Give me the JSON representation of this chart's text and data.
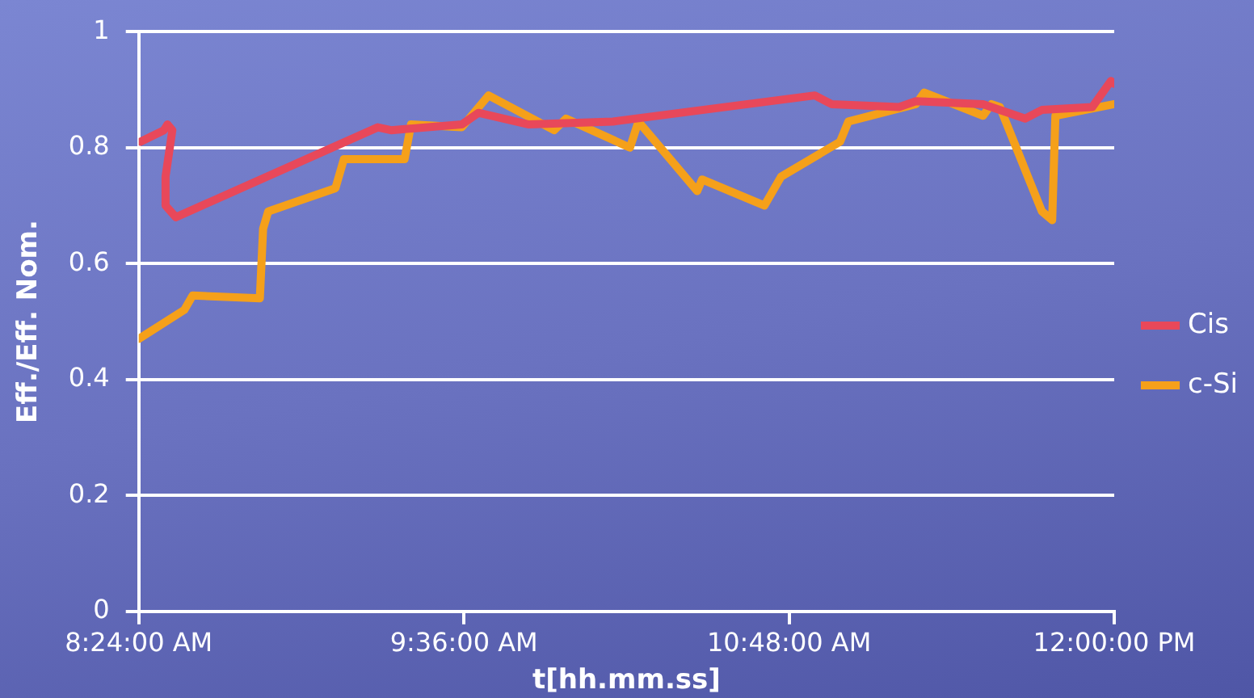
{
  "chart_data": {
    "type": "line",
    "xlabel": "t[hh.mm.ss]",
    "ylabel": "Eff./Eff. Nom.",
    "xlim": [
      8.4,
      12
    ],
    "xticks": [
      {
        "value": 8.4,
        "label": "8:24:00 AM"
      },
      {
        "value": 9.6,
        "label": "9:36:00 AM"
      },
      {
        "value": 10.8,
        "label": "10:48:00 AM"
      },
      {
        "value": 12,
        "label": "12:00:00 PM"
      }
    ],
    "ylim": [
      0,
      1
    ],
    "yticks": [
      0,
      0.2,
      0.4,
      0.6,
      0.8,
      1
    ],
    "grid": "y",
    "legend": "right",
    "marker": "none",
    "line_style": "solid",
    "series": [
      {
        "name": "Cis",
        "color": "#e8485a",
        "x": [
          8.406,
          8.493,
          8.506,
          8.524,
          8.499,
          8.499,
          8.537,
          9.282,
          9.331,
          9.592,
          9.654,
          9.84,
          10.15,
          10.895,
          10.957,
          11.206,
          11.268,
          11.516,
          11.671,
          11.733,
          11.919,
          11.988,
          12.0
        ],
        "values": [
          0.81,
          0.83,
          0.84,
          0.83,
          0.75,
          0.7,
          0.68,
          0.835,
          0.83,
          0.84,
          0.86,
          0.84,
          0.845,
          0.89,
          0.875,
          0.87,
          0.88,
          0.875,
          0.85,
          0.865,
          0.87,
          0.915,
          0.91
        ]
      },
      {
        "name": "c-Si",
        "color": "#f5a01a",
        "x": [
          8.4,
          8.568,
          8.599,
          8.847,
          8.859,
          8.878,
          9.126,
          9.157,
          9.381,
          9.405,
          9.592,
          9.691,
          9.933,
          9.977,
          10.213,
          10.244,
          10.461,
          10.479,
          10.709,
          10.771,
          10.988,
          11.019,
          11.268,
          11.299,
          11.516,
          11.547,
          11.578,
          11.733,
          11.771,
          11.783,
          12.0
        ],
        "values": [
          0.47,
          0.52,
          0.545,
          0.54,
          0.66,
          0.69,
          0.73,
          0.78,
          0.78,
          0.84,
          0.835,
          0.89,
          0.83,
          0.85,
          0.8,
          0.845,
          0.725,
          0.745,
          0.7,
          0.75,
          0.81,
          0.845,
          0.875,
          0.895,
          0.855,
          0.875,
          0.87,
          0.69,
          0.675,
          0.855,
          0.875
        ]
      }
    ]
  }
}
